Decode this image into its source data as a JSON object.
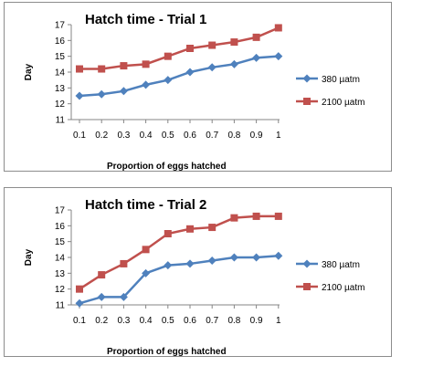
{
  "chart_data": [
    {
      "type": "line",
      "title": "Hatch time - Trial 1",
      "xlabel": "Proportion of eggs hatched",
      "ylabel": "Day",
      "categories": [
        "0.1",
        "0.2",
        "0.3",
        "0.4",
        "0.5",
        "0.6",
        "0.7",
        "0.8",
        "0.9",
        "1"
      ],
      "ylim": [
        11,
        17
      ],
      "yticks": [
        "11",
        "12",
        "13",
        "14",
        "15",
        "16",
        "17"
      ],
      "grid": false,
      "legend_position": "right",
      "series": [
        {
          "name": "380 µatm",
          "color": "#4f81bd",
          "marker": "diamond",
          "values": [
            12.5,
            12.6,
            12.8,
            13.2,
            13.5,
            14.0,
            14.3,
            14.5,
            14.9,
            15.0
          ]
        },
        {
          "name": "2100 µatm",
          "color": "#c0504d",
          "marker": "square",
          "values": [
            14.2,
            14.2,
            14.4,
            14.5,
            15.0,
            15.5,
            15.7,
            15.9,
            16.2,
            16.8
          ]
        }
      ]
    },
    {
      "type": "line",
      "title": "Hatch time - Trial 2",
      "xlabel": "Proportion of eggs hatched",
      "ylabel": "Day",
      "categories": [
        "0.1",
        "0.2",
        "0.3",
        "0.4",
        "0.5",
        "0.6",
        "0.7",
        "0.8",
        "0.9",
        "1"
      ],
      "ylim": [
        11,
        17
      ],
      "yticks": [
        "11",
        "12",
        "13",
        "14",
        "15",
        "16",
        "17"
      ],
      "grid": false,
      "legend_position": "right",
      "series": [
        {
          "name": "380 µatm",
          "color": "#4f81bd",
          "marker": "diamond",
          "values": [
            11.1,
            11.5,
            11.5,
            13.0,
            13.5,
            13.6,
            13.8,
            14.0,
            14.0,
            14.1
          ]
        },
        {
          "name": "2100 µatm",
          "color": "#c0504d",
          "marker": "square",
          "values": [
            12.0,
            12.9,
            13.6,
            14.5,
            15.5,
            15.8,
            15.9,
            16.5,
            16.6,
            16.6
          ]
        }
      ]
    }
  ]
}
